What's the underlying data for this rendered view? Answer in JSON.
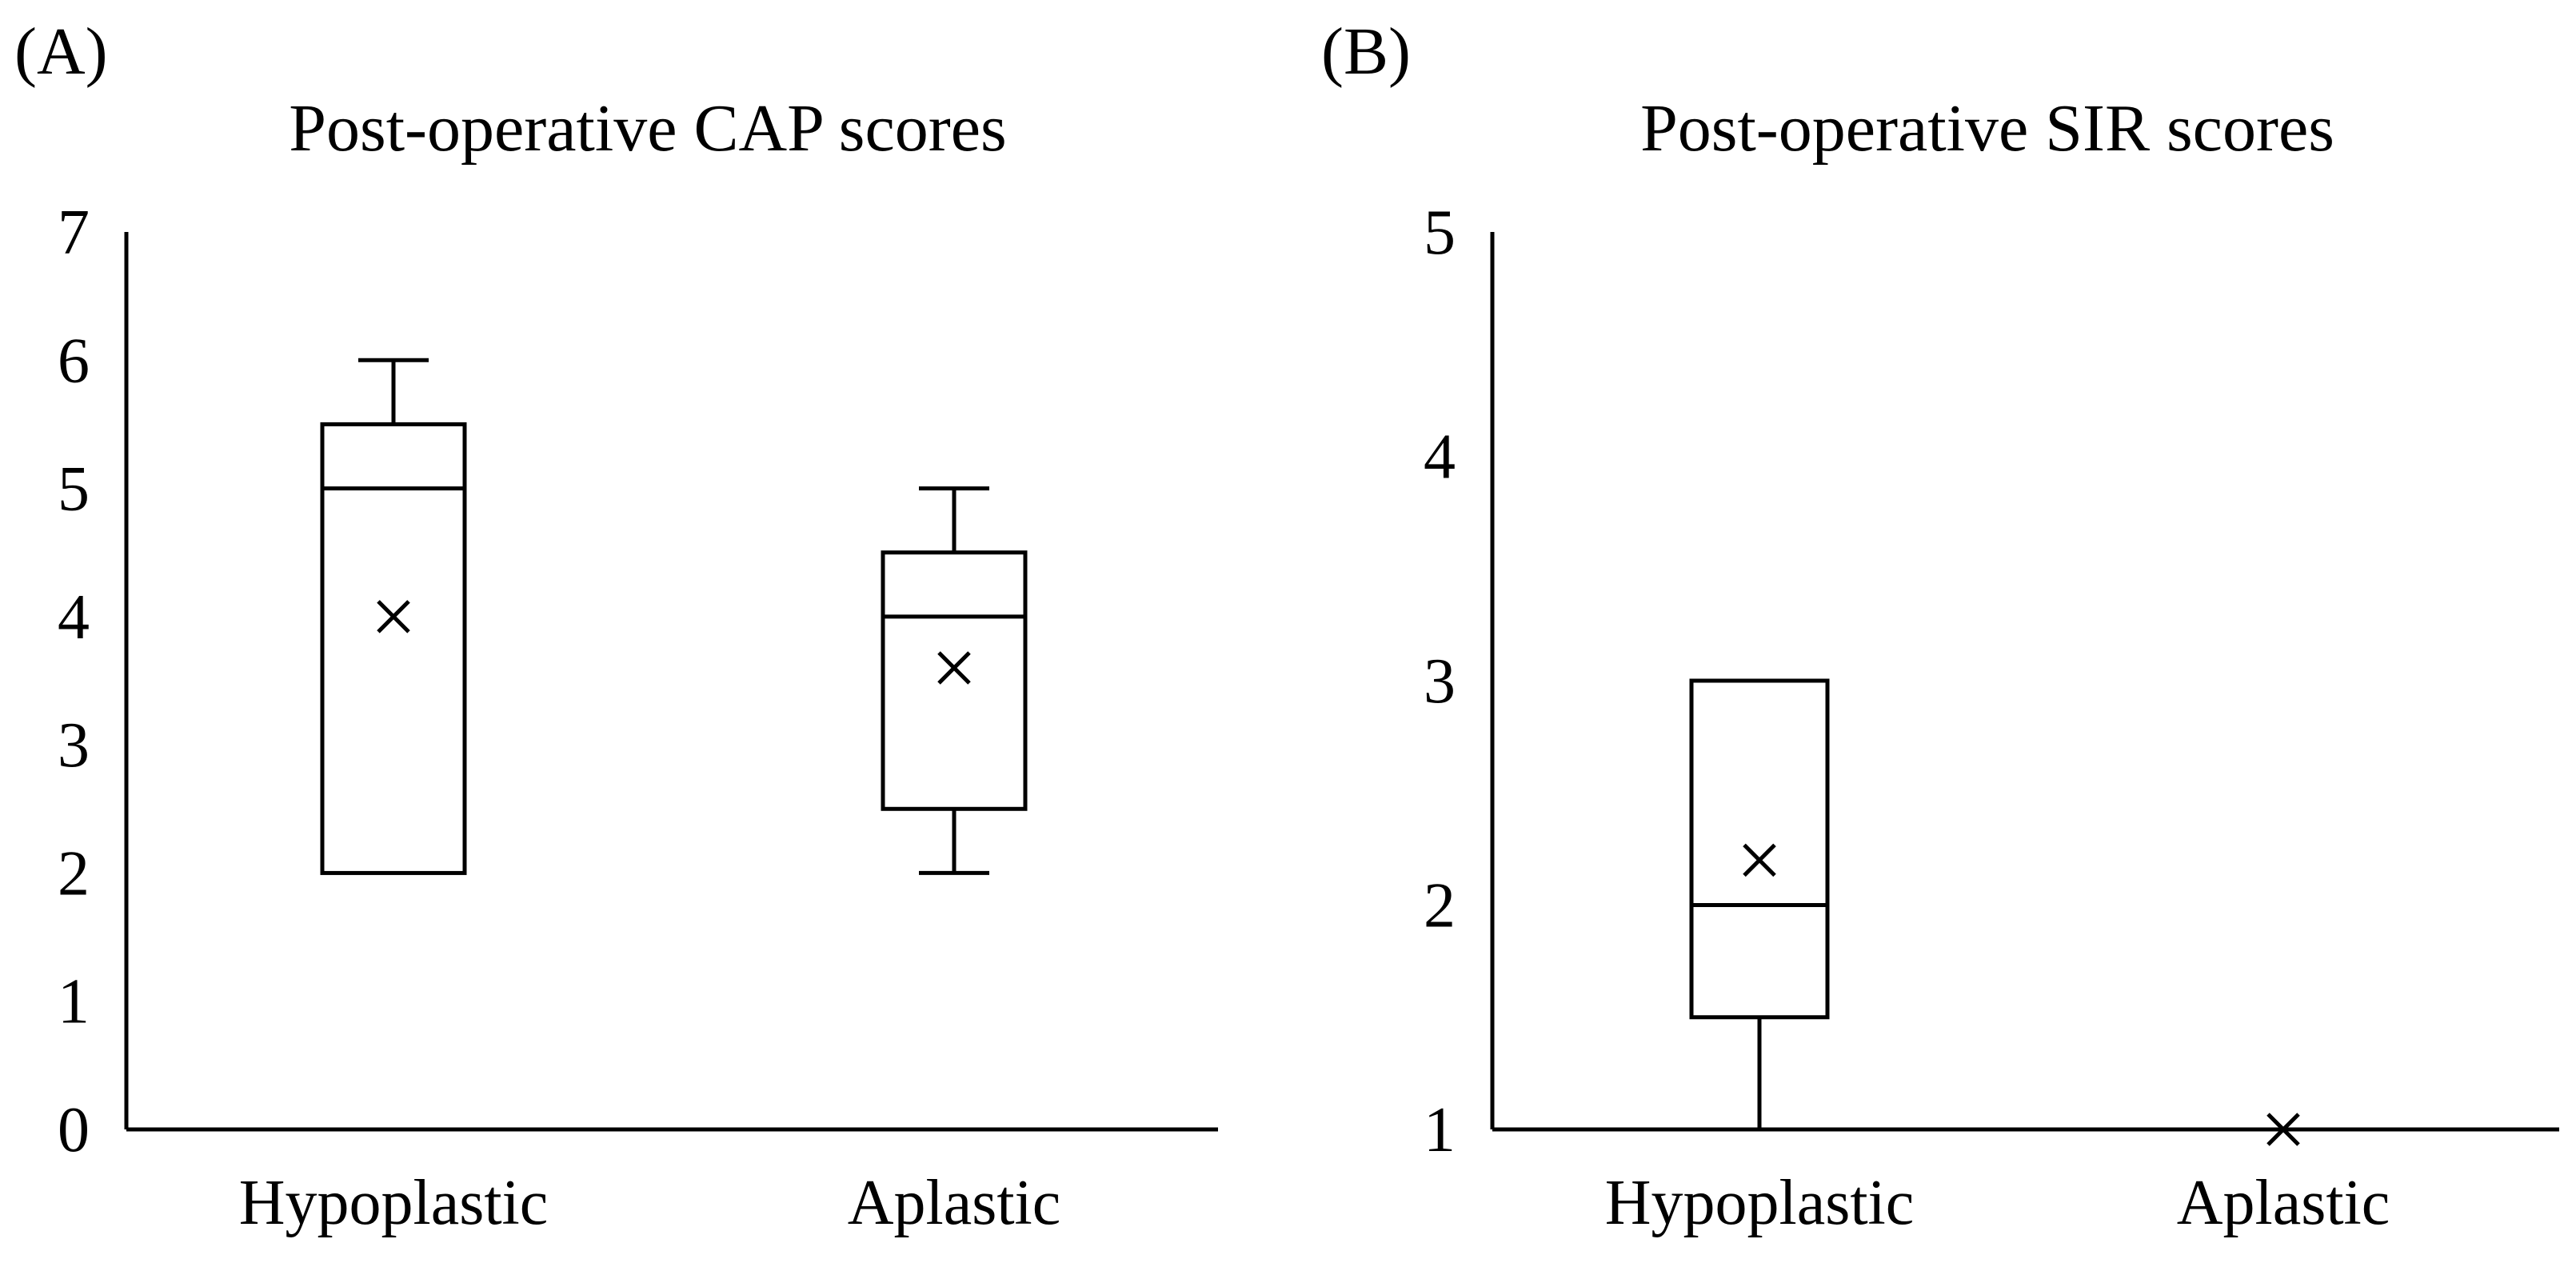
{
  "panels": [
    {
      "panel_label": "(A)",
      "title": "Post-operative CAP scores"
    },
    {
      "panel_label": "(B)",
      "title": "Post-operative SIR scores"
    }
  ],
  "chart_data": [
    {
      "type": "box",
      "title": "Post-operative CAP scores",
      "xlabel": "",
      "ylabel": "",
      "ylim": [
        0,
        7
      ],
      "yticks": [
        0,
        1,
        2,
        3,
        4,
        5,
        6,
        7
      ],
      "grid": false,
      "categories": [
        "Hypoplastic",
        "Aplastic"
      ],
      "boxes": [
        {
          "category": "Hypoplastic",
          "min": 2,
          "q1": 2,
          "median": 5,
          "q3": 5.5,
          "max": 6,
          "mean": 4
        },
        {
          "category": "Aplastic",
          "min": 2,
          "q1": 2.5,
          "median": 4,
          "q3": 4.5,
          "max": 5,
          "mean": 3.6
        }
      ]
    },
    {
      "type": "box",
      "title": "Post-operative SIR scores",
      "xlabel": "",
      "ylabel": "",
      "ylim": [
        1,
        5
      ],
      "yticks": [
        1,
        2,
        3,
        4,
        5
      ],
      "grid": false,
      "categories": [
        "Hypoplastic",
        "Aplastic"
      ],
      "boxes": [
        {
          "category": "Hypoplastic",
          "min": 1,
          "q1": 1.5,
          "median": 2,
          "q3": 3,
          "max": 3,
          "mean": 2.2
        },
        {
          "category": "Aplastic",
          "min": 1,
          "q1": 1,
          "median": 1,
          "q3": 1,
          "max": 1,
          "mean": 1
        }
      ]
    }
  ],
  "colors": {
    "ink": "#000000",
    "background": "#ffffff"
  }
}
